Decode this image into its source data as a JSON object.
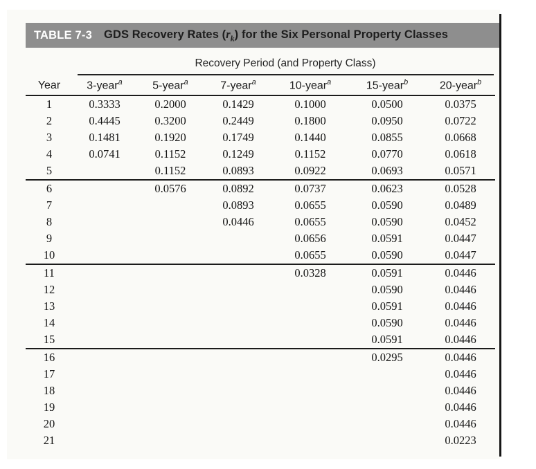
{
  "table": {
    "label": "TABLE 7-3",
    "title": {
      "pre": "GDS Recovery Rates (",
      "var": "r",
      "sub": "k",
      "post": ") for the Six Personal Property Classes"
    },
    "group_header": "Recovery Period (and Property Class)",
    "columns": [
      {
        "label": "Year",
        "sup": ""
      },
      {
        "label": "3-year",
        "sup": "a"
      },
      {
        "label": "5-year",
        "sup": "a"
      },
      {
        "label": "7-year",
        "sup": "a"
      },
      {
        "label": "10-year",
        "sup": "a"
      },
      {
        "label": "15-year",
        "sup": "b"
      },
      {
        "label": "20-year",
        "sup": "b"
      }
    ],
    "sections": [
      {
        "rows": [
          {
            "year": "1",
            "values": [
              "0.3333",
              "0.2000",
              "0.1429",
              "0.1000",
              "0.0500",
              "0.0375"
            ]
          },
          {
            "year": "2",
            "values": [
              "0.4445",
              "0.3200",
              "0.2449",
              "0.1800",
              "0.0950",
              "0.0722"
            ]
          },
          {
            "year": "3",
            "values": [
              "0.1481",
              "0.1920",
              "0.1749",
              "0.1440",
              "0.0855",
              "0.0668"
            ]
          },
          {
            "year": "4",
            "values": [
              "0.0741",
              "0.1152",
              "0.1249",
              "0.1152",
              "0.0770",
              "0.0618"
            ]
          },
          {
            "year": "5",
            "values": [
              "",
              "0.1152",
              "0.0893",
              "0.0922",
              "0.0693",
              "0.0571"
            ]
          }
        ]
      },
      {
        "rows": [
          {
            "year": "6",
            "values": [
              "",
              "0.0576",
              "0.0892",
              "0.0737",
              "0.0623",
              "0.0528"
            ]
          },
          {
            "year": "7",
            "values": [
              "",
              "",
              "0.0893",
              "0.0655",
              "0.0590",
              "0.0489"
            ]
          },
          {
            "year": "8",
            "values": [
              "",
              "",
              "0.0446",
              "0.0655",
              "0.0590",
              "0.0452"
            ]
          },
          {
            "year": "9",
            "values": [
              "",
              "",
              "",
              "0.0656",
              "0.0591",
              "0.0447"
            ]
          },
          {
            "year": "10",
            "values": [
              "",
              "",
              "",
              "0.0655",
              "0.0590",
              "0.0447"
            ]
          }
        ]
      },
      {
        "rows": [
          {
            "year": "11",
            "values": [
              "",
              "",
              "",
              "0.0328",
              "0.0591",
              "0.0446"
            ]
          },
          {
            "year": "12",
            "values": [
              "",
              "",
              "",
              "",
              "0.0590",
              "0.0446"
            ]
          },
          {
            "year": "13",
            "values": [
              "",
              "",
              "",
              "",
              "0.0591",
              "0.0446"
            ]
          },
          {
            "year": "14",
            "values": [
              "",
              "",
              "",
              "",
              "0.0590",
              "0.0446"
            ]
          },
          {
            "year": "15",
            "values": [
              "",
              "",
              "",
              "",
              "0.0591",
              "0.0446"
            ]
          }
        ]
      },
      {
        "rows": [
          {
            "year": "16",
            "values": [
              "",
              "",
              "",
              "",
              "0.0295",
              "0.0446"
            ]
          },
          {
            "year": "17",
            "values": [
              "",
              "",
              "",
              "",
              "",
              "0.0446"
            ]
          },
          {
            "year": "18",
            "values": [
              "",
              "",
              "",
              "",
              "",
              "0.0446"
            ]
          },
          {
            "year": "19",
            "values": [
              "",
              "",
              "",
              "",
              "",
              "0.0446"
            ]
          },
          {
            "year": "20",
            "values": [
              "",
              "",
              "",
              "",
              "",
              "0.0446"
            ]
          },
          {
            "year": "21",
            "values": [
              "",
              "",
              "",
              "",
              "",
              "0.0223"
            ]
          }
        ]
      }
    ]
  },
  "colors": {
    "title_bar": "#8e8e8e",
    "title_label": "#ffffff",
    "title_text": "#1d1d1d",
    "rule": "#1b1b1b",
    "data_text": "#141414",
    "page_background": "#fafaf7"
  }
}
